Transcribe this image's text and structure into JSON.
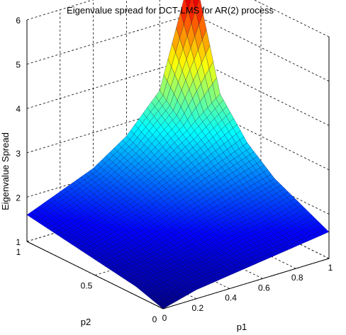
{
  "chart_data": {
    "type": "surface",
    "title": "Eigenvalue spread for DCT-LMS for AR(2) process",
    "xlabel": "p1",
    "ylabel": "p2",
    "zlabel": "Eigenvalue Spread",
    "xlim": [
      0,
      1
    ],
    "ylim": [
      0,
      1
    ],
    "zlim": [
      1,
      6
    ],
    "xticks": [
      "0",
      "0.2",
      "0.4",
      "0.6",
      "0.8",
      "1"
    ],
    "yticks": [
      "0",
      "0.5",
      "1"
    ],
    "zticks": [
      "1",
      "2",
      "3",
      "4",
      "5",
      "6"
    ],
    "grid": true,
    "colormap": "jet",
    "x": [
      0,
      0.2,
      0.4,
      0.6,
      0.8,
      1.0
    ],
    "y": [
      0,
      0.2,
      0.4,
      0.6,
      0.8,
      1.0
    ],
    "z": [
      [
        1.0,
        1.2,
        1.3,
        1.4,
        1.5,
        1.6
      ],
      [
        1.2,
        1.3,
        1.4,
        1.6,
        1.7,
        1.9
      ],
      [
        1.3,
        1.4,
        1.6,
        1.8,
        2.0,
        2.2
      ],
      [
        1.4,
        1.6,
        1.8,
        2.1,
        2.4,
        2.7
      ],
      [
        1.5,
        1.7,
        2.0,
        2.4,
        2.9,
        3.5
      ],
      [
        1.6,
        1.9,
        2.2,
        2.7,
        3.5,
        6.1
      ]
    ]
  }
}
